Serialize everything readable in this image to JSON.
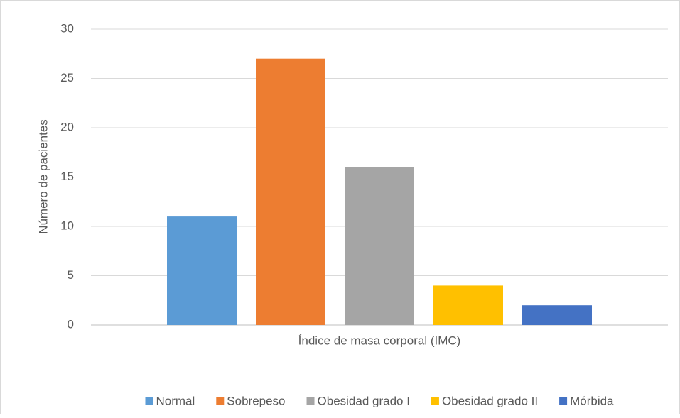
{
  "chart_data": {
    "type": "bar",
    "categories": [
      "Índice de masa corporal (IMC)"
    ],
    "y_label": "Número de pacientes",
    "series": [
      {
        "name": "Normal",
        "color": "#5b9bd5",
        "values": [
          11
        ]
      },
      {
        "name": "Sobrepeso",
        "color": "#ed7d31",
        "values": [
          27
        ]
      },
      {
        "name": "Obesidad grado I",
        "color": "#a5a5a5",
        "values": [
          16
        ]
      },
      {
        "name": "Obesidad grado II",
        "color": "#ffc000",
        "values": [
          4
        ]
      },
      {
        "name": "Mórbida",
        "color": "#4472c4",
        "values": [
          2
        ]
      }
    ],
    "ylim": [
      0,
      30
    ],
    "yticks": [
      0,
      5,
      10,
      15,
      20,
      25,
      30
    ],
    "grid": true,
    "legend": "bottom"
  }
}
